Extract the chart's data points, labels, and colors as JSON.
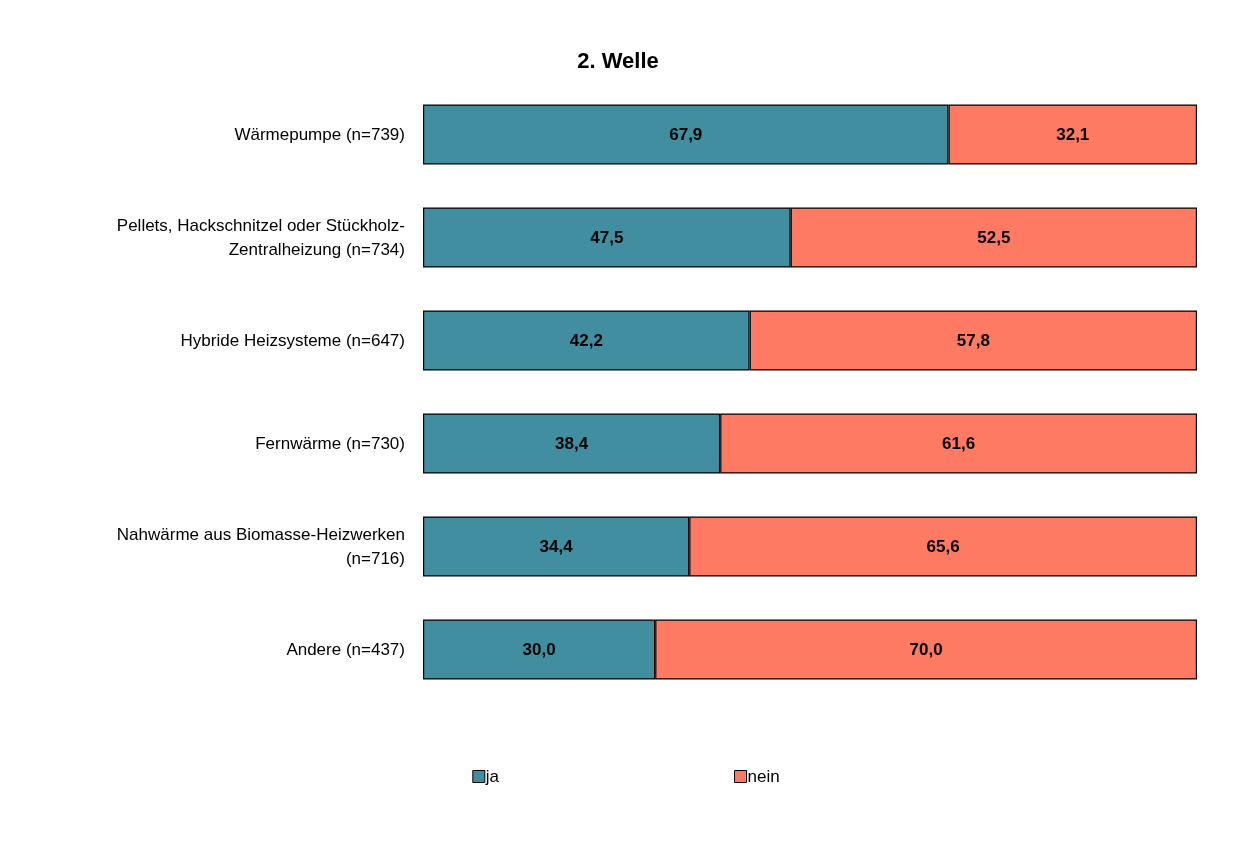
{
  "chart_data": {
    "type": "bar",
    "title": "2. Welle",
    "orientation": "horizontal",
    "stacked": true,
    "legend": "bottom",
    "categories": [
      "Wärmepumpe (n=739)",
      "Pellets, Hackschnitzel oder Stückholz-Zentralheizung (n=734)",
      "Hybride Heizsysteme (n=647)",
      "Fernwärme (n=730)",
      "Nahwärme aus Biomasse-Heizwerken (n=716)",
      "Andere (n=437)"
    ],
    "series": [
      {
        "name": "ja",
        "color": "#408ea0",
        "values": [
          67.9,
          47.5,
          42.2,
          38.4,
          34.4,
          30.0
        ],
        "value_labels": [
          "67,9",
          "47,5",
          "42,2",
          "38,4",
          "34,4",
          "30,0"
        ]
      },
      {
        "name": "nein",
        "color": "#ff7a63",
        "values": [
          32.1,
          52.5,
          57.8,
          61.6,
          65.6,
          70.0
        ],
        "value_labels": [
          "32,1",
          "52,5",
          "57,8",
          "61,6",
          "65,6",
          "70,0"
        ]
      }
    ]
  }
}
